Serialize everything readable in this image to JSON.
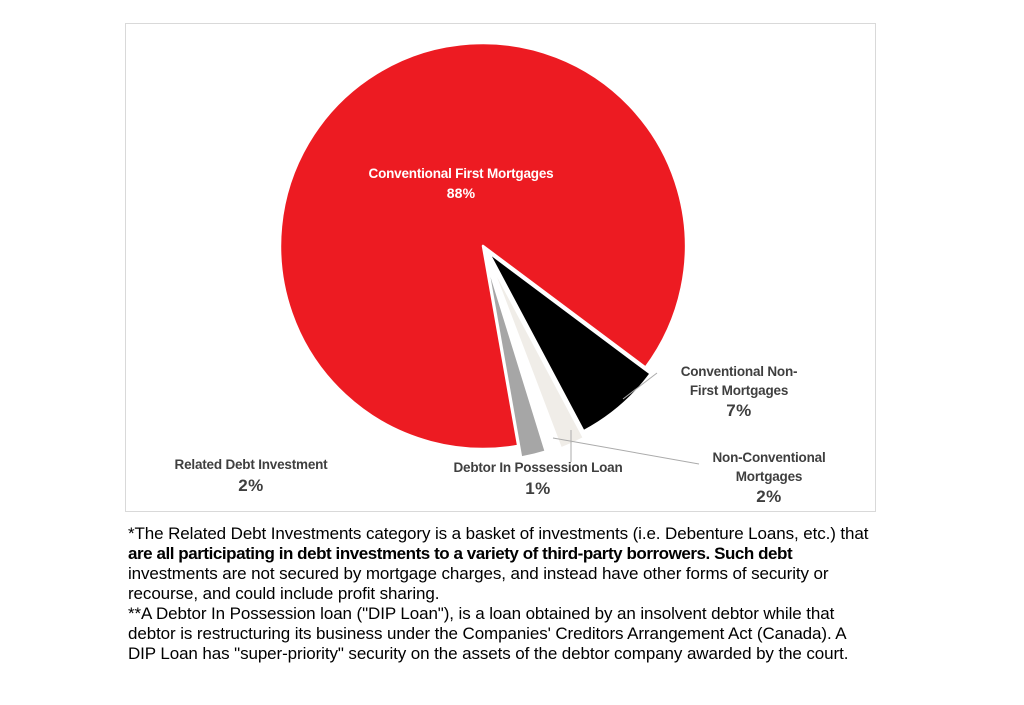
{
  "chart_data": {
    "type": "pie",
    "direction": "clockwise",
    "start_angle_deg": 170,
    "legend_position": "none",
    "slices": [
      {
        "label": "Conventional First Mortgages",
        "value": 88,
        "pct_label": "88%",
        "color": "#ED1B22",
        "explode": 0
      },
      {
        "label": "Conventional Non-First Mortgages",
        "value": 7,
        "pct_label": "7%",
        "color": "#000000",
        "explode": 8
      },
      {
        "label": "Non-Conventional Mortgages",
        "value": 2,
        "pct_label": "2%",
        "color": "#F0EDE8",
        "explode": 14
      },
      {
        "label": "Debtor In Possession Loan",
        "value": 1,
        "pct_label": "1%",
        "color": "#FFFFFF",
        "explode": 18
      },
      {
        "label": "Related Debt Investment",
        "value": 2,
        "pct_label": "2%",
        "color": "#A6A6A6",
        "explode": 12
      }
    ]
  },
  "callout_labels": {
    "conv_first": {
      "lines": [
        "Conventional First Mortgages"
      ],
      "pct": "88%"
    },
    "conv_non_first": {
      "lines": [
        "Conventional Non-",
        "First Mortgages"
      ],
      "pct": "7%"
    },
    "non_conv": {
      "lines": [
        "Non-Conventional",
        "Mortgages"
      ],
      "pct": "2%"
    },
    "dip": {
      "lines": [
        "Debtor In Possession Loan"
      ],
      "pct": "1%"
    },
    "related": {
      "lines": [
        "Related Debt Investment"
      ],
      "pct": "2%"
    }
  },
  "footnotes": {
    "lines": [
      "*The Related Debt Investments category is a basket of investments (i.e. Debenture Loans, etc.) that",
      "are all participating in debt investments to a variety of third-party borrowers. Such debt",
      "investments are not secured by mortgage charges, and instead have other forms of security or",
      "recourse, and could include profit sharing.",
      "**A Debtor In Possession loan (\"DIP Loan\"), is a loan obtained by an insolvent debtor while that",
      "debtor is restructuring its business under the Companies' Creditors Arrangement Act (Canada). A",
      "DIP Loan has \"super-priority\" security on the assets of the debtor company awarded by the court."
    ],
    "bold_line_index": 1
  },
  "colors": {
    "panel_border": "#D9D9D9",
    "label_text": "#3F3F3F",
    "leader_line": "#ABABAB",
    "slice_separator": "#FFFFFF"
  }
}
